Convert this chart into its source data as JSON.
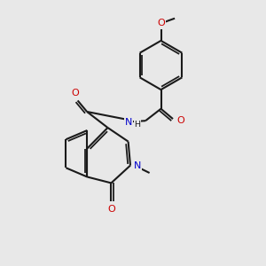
{
  "bg": "#e8e8e8",
  "bc": "#1a1a1a",
  "oc": "#cc0000",
  "nc": "#0000cc",
  "lw": 1.5,
  "fs": 8.0,
  "xlim": [
    0,
    10
  ],
  "ylim": [
    0,
    10
  ]
}
